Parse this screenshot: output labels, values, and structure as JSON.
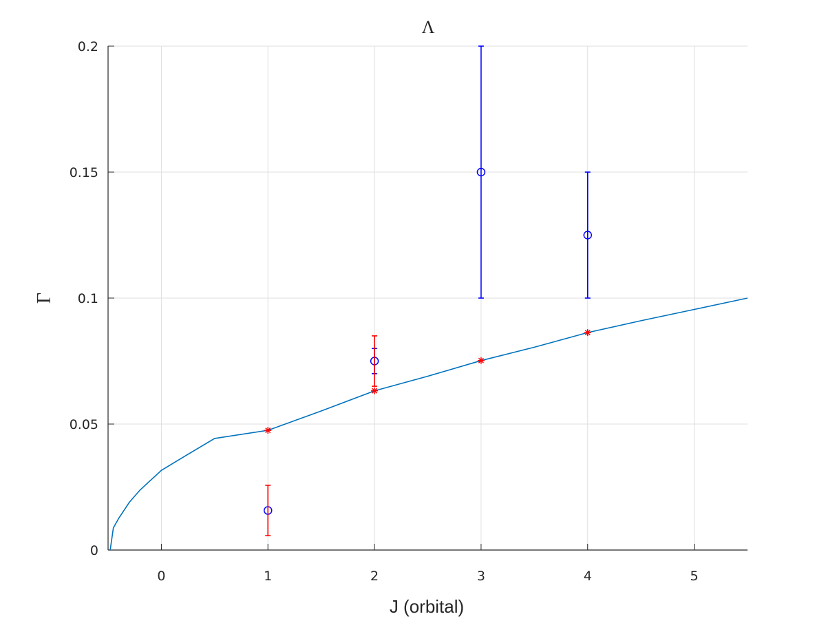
{
  "chart_data": {
    "type": "scatter",
    "title": "Λ",
    "xlabel": "J (orbital)",
    "ylabel": "Γ",
    "xlim": [
      -0.5,
      5.5
    ],
    "ylim": [
      0,
      0.2
    ],
    "grid": true,
    "x_ticks": [
      "0",
      "1",
      "2",
      "3",
      "4",
      "5"
    ],
    "y_ticks": [
      "0",
      "0.05",
      "0.1",
      "0.15",
      "0.2"
    ],
    "colors": {
      "curve": "#0072BD",
      "blue_series": "#0000FF",
      "red_series": "#FF0000",
      "grid": "#DFDFDF",
      "axis": "#262626"
    },
    "series": [
      {
        "type": "line",
        "color": "#0072BD",
        "x": [
          -0.48,
          -0.45,
          -0.4,
          -0.3,
          -0.2,
          0,
          0.25,
          0.5,
          1,
          1.5,
          2,
          2.5,
          3,
          3.5,
          4,
          4.5,
          5,
          5.5
        ],
        "y": [
          0.0,
          0.0088,
          0.0126,
          0.019,
          0.0238,
          0.0316,
          0.038,
          0.0443,
          0.0475,
          0.0552,
          0.0632,
          0.069,
          0.0752,
          0.0805,
          0.0863,
          0.091,
          0.0955,
          0.1
        ]
      },
      {
        "type": "errorbar",
        "marker": "o",
        "color": "#0000FF",
        "x": [
          1,
          2,
          3,
          4
        ],
        "y": [
          0.0157,
          0.075,
          0.15,
          0.125
        ],
        "lower": [
          0.0157,
          0.07,
          0.1,
          0.1
        ],
        "upper": [
          0.0157,
          0.08,
          0.2,
          0.15
        ]
      },
      {
        "type": "errorbar",
        "marker": "*",
        "color": "#FF0000",
        "x": [
          1,
          2,
          3,
          4
        ],
        "y": [
          0.0475,
          0.0632,
          0.0752,
          0.0863
        ],
        "lower": [
          0.0475,
          0.0632,
          0.0752,
          0.0863
        ],
        "upper": [
          0.0475,
          0.0632,
          0.0752,
          0.0863
        ]
      },
      {
        "type": "errorbar",
        "marker": "none",
        "color": "#FF0000",
        "x": [
          1,
          2
        ],
        "y": [
          0.0157,
          0.075
        ],
        "lower": [
          0.0057,
          0.065
        ],
        "upper": [
          0.0257,
          0.085
        ]
      }
    ]
  }
}
